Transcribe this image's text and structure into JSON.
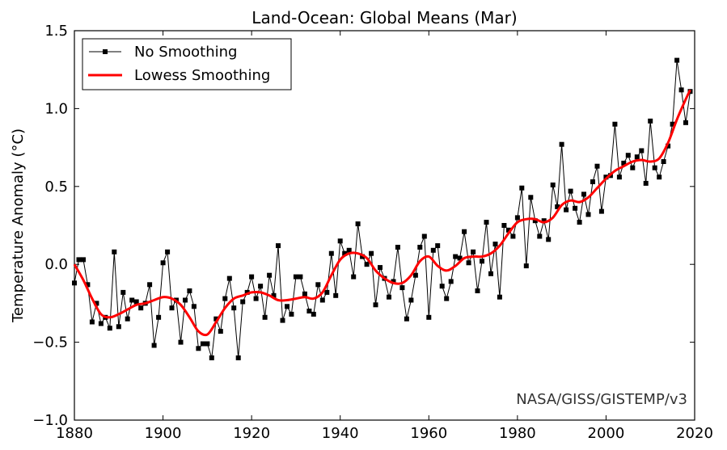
{
  "chart_data": {
    "type": "line",
    "title": "Land-Ocean: Global Means (Mar)",
    "xlabel": "",
    "ylabel": "Temperature Anomaly (°C)",
    "xlim": [
      1880,
      2020
    ],
    "ylim": [
      -1.0,
      1.5
    ],
    "xticks": [
      1880,
      1900,
      1920,
      1940,
      1960,
      1980,
      2000,
      2020
    ],
    "xtick_labels": [
      "1880",
      "1900",
      "1920",
      "1940",
      "1960",
      "1980",
      "2000",
      "2020"
    ],
    "yticks": [
      -1.0,
      -0.5,
      0.0,
      0.5,
      1.0,
      1.5
    ],
    "ytick_labels": [
      "−1.0",
      "−0.5",
      "0.0",
      "0.5",
      "1.0",
      "1.5"
    ],
    "grid": false,
    "legend_position": "top-left",
    "annotation": "NASA/GISS/GISTEMP/v3",
    "series": [
      {
        "name": "No Smoothing",
        "color": "#000000",
        "marker": "square",
        "x": [
          1880,
          1881,
          1882,
          1883,
          1884,
          1885,
          1886,
          1887,
          1888,
          1889,
          1890,
          1891,
          1892,
          1893,
          1894,
          1895,
          1896,
          1897,
          1898,
          1899,
          1900,
          1901,
          1902,
          1903,
          1904,
          1905,
          1906,
          1907,
          1908,
          1909,
          1910,
          1911,
          1912,
          1913,
          1914,
          1915,
          1916,
          1917,
          1918,
          1919,
          1920,
          1921,
          1922,
          1923,
          1924,
          1925,
          1926,
          1927,
          1928,
          1929,
          1930,
          1931,
          1932,
          1933,
          1934,
          1935,
          1936,
          1937,
          1938,
          1939,
          1940,
          1941,
          1942,
          1943,
          1944,
          1945,
          1946,
          1947,
          1948,
          1949,
          1950,
          1951,
          1952,
          1953,
          1954,
          1955,
          1956,
          1957,
          1958,
          1959,
          1960,
          1961,
          1962,
          1963,
          1964,
          1965,
          1966,
          1967,
          1968,
          1969,
          1970,
          1971,
          1972,
          1973,
          1974,
          1975,
          1976,
          1977,
          1978,
          1979,
          1980,
          1981,
          1982,
          1983,
          1984,
          1985,
          1986,
          1987,
          1988,
          1989,
          1990,
          1991,
          1992,
          1993,
          1994,
          1995,
          1996,
          1997,
          1998,
          1999,
          2000,
          2001,
          2002,
          2003,
          2004,
          2005,
          2006,
          2007,
          2008,
          2009,
          2010,
          2011,
          2012,
          2013,
          2014,
          2015,
          2016,
          2017,
          2018,
          2019
        ],
        "values": [
          -0.12,
          0.03,
          0.03,
          -0.13,
          -0.37,
          -0.25,
          -0.38,
          -0.34,
          -0.41,
          0.08,
          -0.4,
          -0.18,
          -0.35,
          -0.23,
          -0.24,
          -0.28,
          -0.25,
          -0.13,
          -0.52,
          -0.34,
          0.01,
          0.08,
          -0.28,
          -0.23,
          -0.5,
          -0.23,
          -0.17,
          -0.27,
          -0.54,
          -0.51,
          -0.51,
          -0.6,
          -0.35,
          -0.43,
          -0.22,
          -0.09,
          -0.28,
          -0.6,
          -0.24,
          -0.18,
          -0.08,
          -0.22,
          -0.14,
          -0.34,
          -0.07,
          -0.2,
          0.12,
          -0.36,
          -0.27,
          -0.32,
          -0.08,
          -0.08,
          -0.19,
          -0.3,
          -0.32,
          -0.13,
          -0.23,
          -0.18,
          0.07,
          -0.2,
          0.15,
          0.07,
          0.09,
          -0.08,
          0.26,
          0.05,
          0.0,
          0.07,
          -0.26,
          -0.02,
          -0.09,
          -0.21,
          -0.11,
          0.11,
          -0.15,
          -0.35,
          -0.23,
          -0.07,
          0.11,
          0.18,
          -0.34,
          0.09,
          0.12,
          -0.14,
          -0.22,
          -0.11,
          0.05,
          0.04,
          0.21,
          0.01,
          0.08,
          -0.17,
          0.02,
          0.27,
          -0.06,
          0.13,
          -0.21,
          0.25,
          0.22,
          0.18,
          0.3,
          0.49,
          -0.01,
          0.43,
          0.28,
          0.18,
          0.28,
          0.16,
          0.51,
          0.37,
          0.77,
          0.35,
          0.47,
          0.36,
          0.27,
          0.45,
          0.32,
          0.53,
          0.63,
          0.34,
          0.56,
          0.57,
          0.9,
          0.56,
          0.65,
          0.7,
          0.62,
          0.69,
          0.73,
          0.52,
          0.92,
          0.62,
          0.56,
          0.66,
          0.76,
          0.9,
          1.31,
          1.12,
          0.91,
          1.11
        ]
      },
      {
        "name": "Lowess Smoothing",
        "color": "#ff0000",
        "marker": "none",
        "x": [
          1880,
          1882,
          1884,
          1886,
          1888,
          1890,
          1892,
          1894,
          1896,
          1898,
          1900,
          1902,
          1904,
          1906,
          1908,
          1910,
          1912,
          1914,
          1916,
          1918,
          1920,
          1922,
          1924,
          1926,
          1928,
          1930,
          1932,
          1934,
          1936,
          1938,
          1940,
          1942,
          1944,
          1946,
          1948,
          1950,
          1952,
          1954,
          1956,
          1958,
          1960,
          1962,
          1964,
          1966,
          1968,
          1970,
          1972,
          1974,
          1976,
          1978,
          1980,
          1982,
          1984,
          1986,
          1988,
          1990,
          1992,
          1994,
          1996,
          1998,
          2000,
          2002,
          2004,
          2006,
          2008,
          2010,
          2012,
          2014,
          2016,
          2018,
          2019
        ],
        "values": [
          0.0,
          -0.1,
          -0.22,
          -0.32,
          -0.34,
          -0.32,
          -0.29,
          -0.26,
          -0.25,
          -0.23,
          -0.21,
          -0.22,
          -0.26,
          -0.34,
          -0.43,
          -0.45,
          -0.37,
          -0.28,
          -0.22,
          -0.2,
          -0.18,
          -0.18,
          -0.2,
          -0.23,
          -0.23,
          -0.22,
          -0.21,
          -0.22,
          -0.18,
          -0.07,
          0.03,
          0.07,
          0.07,
          0.04,
          -0.04,
          -0.09,
          -0.12,
          -0.12,
          -0.07,
          0.02,
          0.05,
          -0.01,
          -0.04,
          -0.01,
          0.04,
          0.05,
          0.05,
          0.07,
          0.12,
          0.2,
          0.27,
          0.29,
          0.29,
          0.27,
          0.3,
          0.38,
          0.41,
          0.4,
          0.43,
          0.49,
          0.55,
          0.6,
          0.63,
          0.66,
          0.67,
          0.66,
          0.68,
          0.78,
          0.93,
          1.06,
          1.12
        ]
      }
    ]
  }
}
